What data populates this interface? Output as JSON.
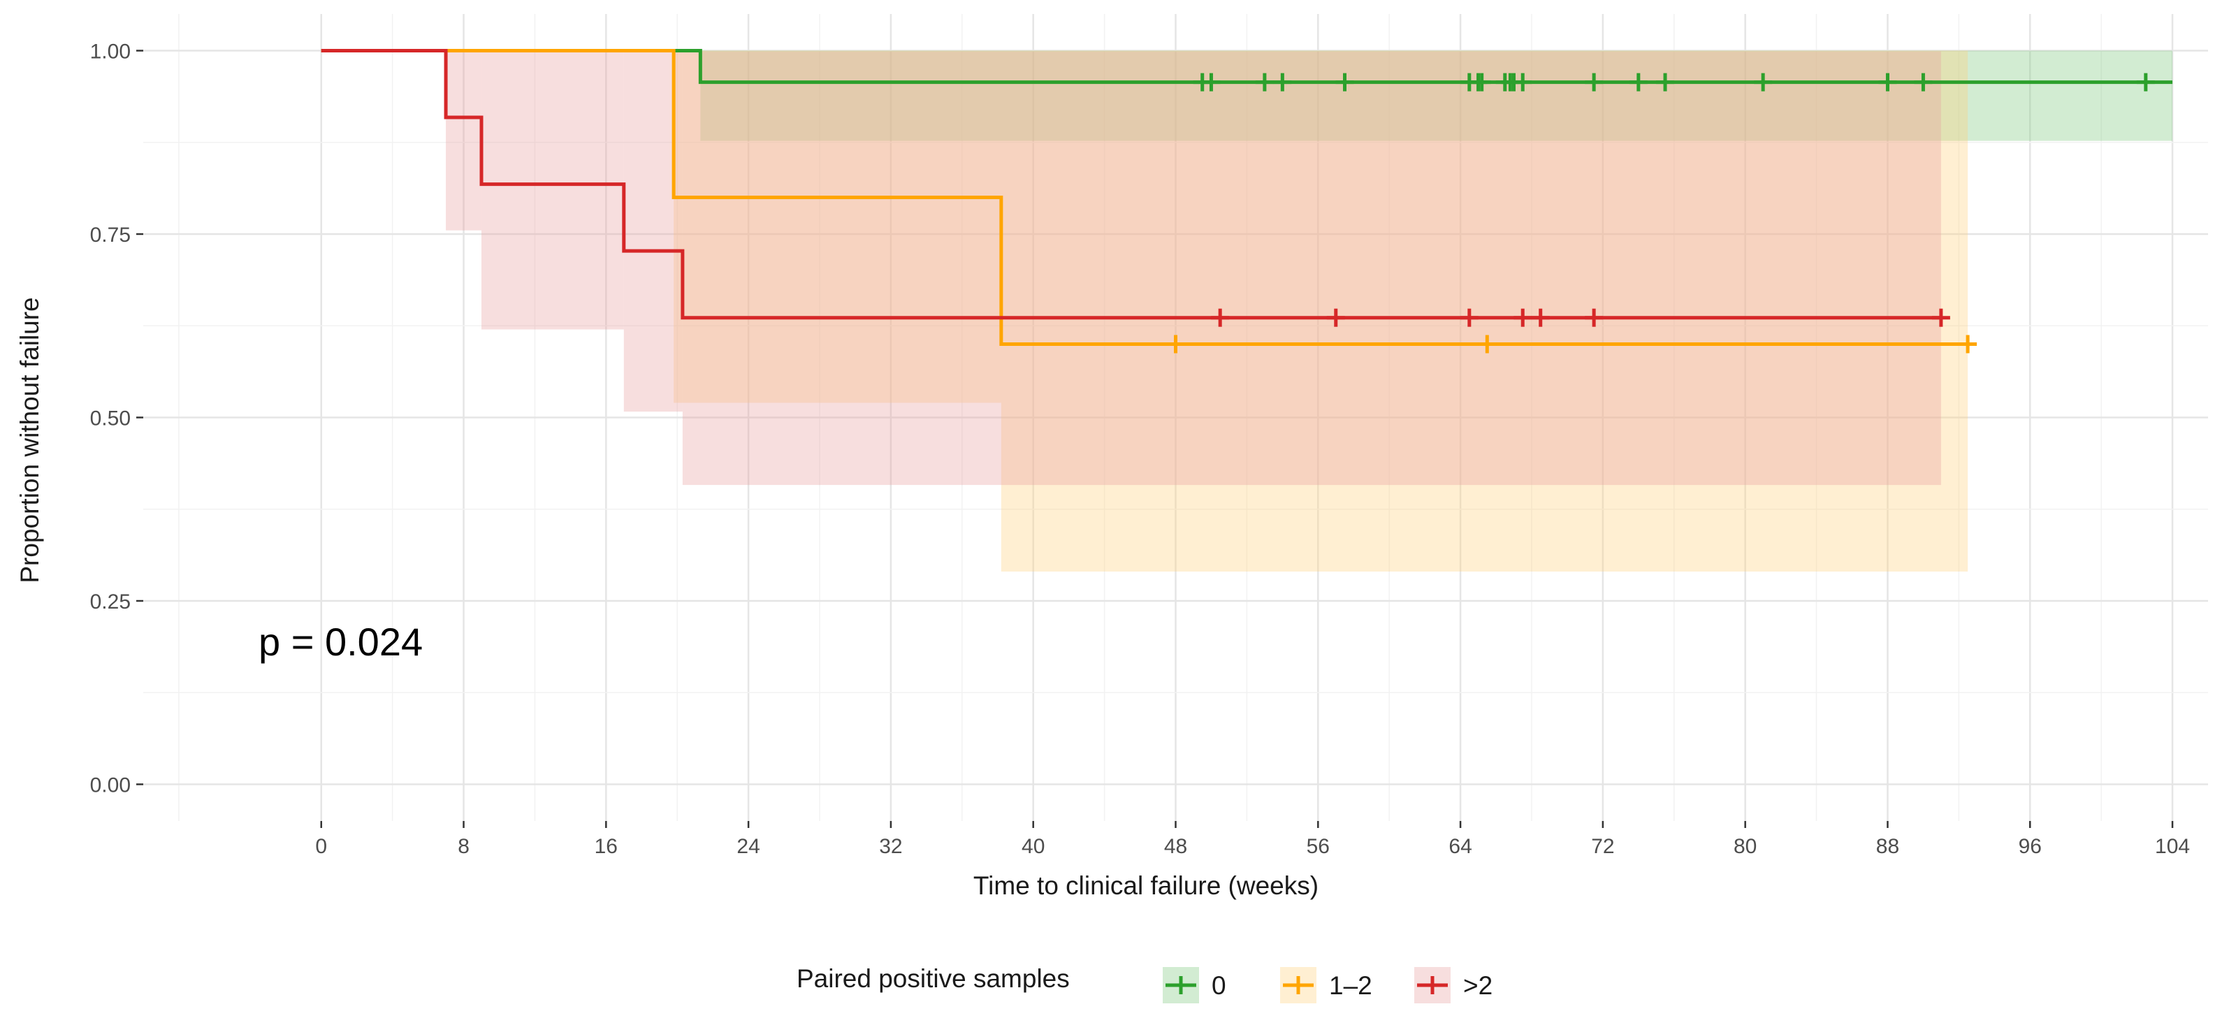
{
  "chart_data": {
    "type": "step",
    "title": "",
    "xlabel": "Time to clinical failure (weeks)",
    "ylabel": "Proportion without failure",
    "xlim": [
      -10,
      106
    ],
    "ylim": [
      -0.05,
      1.05
    ],
    "x_ticks": [
      0,
      8,
      16,
      24,
      32,
      40,
      48,
      56,
      64,
      72,
      80,
      88,
      96,
      104
    ],
    "x_tick_labels": [
      "0",
      "8",
      "16",
      "24",
      "32",
      "40",
      "48",
      "56",
      "64",
      "72",
      "80",
      "88",
      "96",
      "104"
    ],
    "y_ticks": [
      0,
      0.25,
      0.5,
      0.75,
      1
    ],
    "y_tick_labels": [
      "0.00",
      "0.25",
      "0.50",
      "0.75",
      "1.00"
    ],
    "grid": true,
    "annotation": "p = 0.024",
    "legend": {
      "title": "Paired positive samples",
      "position": "bottom"
    },
    "series": [
      {
        "name": "0",
        "color": "#2ca02c",
        "fill": "#7fc97f",
        "steps": [
          [
            0,
            1.0
          ],
          [
            21.3,
            0.957
          ],
          [
            104,
            0.957
          ]
        ],
        "ci": [
          [
            0,
            1.0,
            1.0
          ],
          [
            21.3,
            0.877,
            1.0
          ],
          [
            104,
            0.877,
            1.0
          ]
        ],
        "censors": [
          49.5,
          50.0,
          53.0,
          54.0,
          57.5,
          64.5,
          65.0,
          65.2,
          66.5,
          66.8,
          67.0,
          67.5,
          71.5,
          74.0,
          75.5,
          81.0,
          88.0,
          90.0,
          102.5
        ]
      },
      {
        "name": "1–2",
        "color": "#ffa500",
        "fill": "#ffd27f",
        "steps": [
          [
            0,
            1.0
          ],
          [
            19.8,
            0.8
          ],
          [
            38.2,
            0.6
          ],
          [
            92.5,
            0.6
          ]
        ],
        "ci": [
          [
            0,
            1.0,
            1.0
          ],
          [
            19.8,
            0.52,
            1.0
          ],
          [
            38.2,
            0.29,
            1.0
          ],
          [
            92.5,
            0.29,
            1.0
          ]
        ],
        "censors": [
          48.0,
          65.5,
          92.5
        ]
      },
      {
        "name": ">2",
        "color": "#d62728",
        "fill": "#e8a0a0",
        "steps": [
          [
            0,
            1.0
          ],
          [
            7.0,
            0.909
          ],
          [
            9.0,
            0.818
          ],
          [
            17.0,
            0.727
          ],
          [
            20.3,
            0.636
          ],
          [
            91.0,
            0.636
          ]
        ],
        "ci": [
          [
            0,
            1.0,
            1.0
          ],
          [
            7.0,
            0.755,
            1.0
          ],
          [
            9.0,
            0.62,
            1.0
          ],
          [
            17.0,
            0.508,
            1.0
          ],
          [
            20.3,
            0.408,
            0.999
          ],
          [
            38.2,
            0.408,
            0.999
          ],
          [
            91.0,
            0.408,
            0.999
          ]
        ],
        "censors": [
          50.5,
          57.0,
          64.5,
          67.5,
          68.5,
          71.5,
          91.0
        ]
      }
    ]
  }
}
